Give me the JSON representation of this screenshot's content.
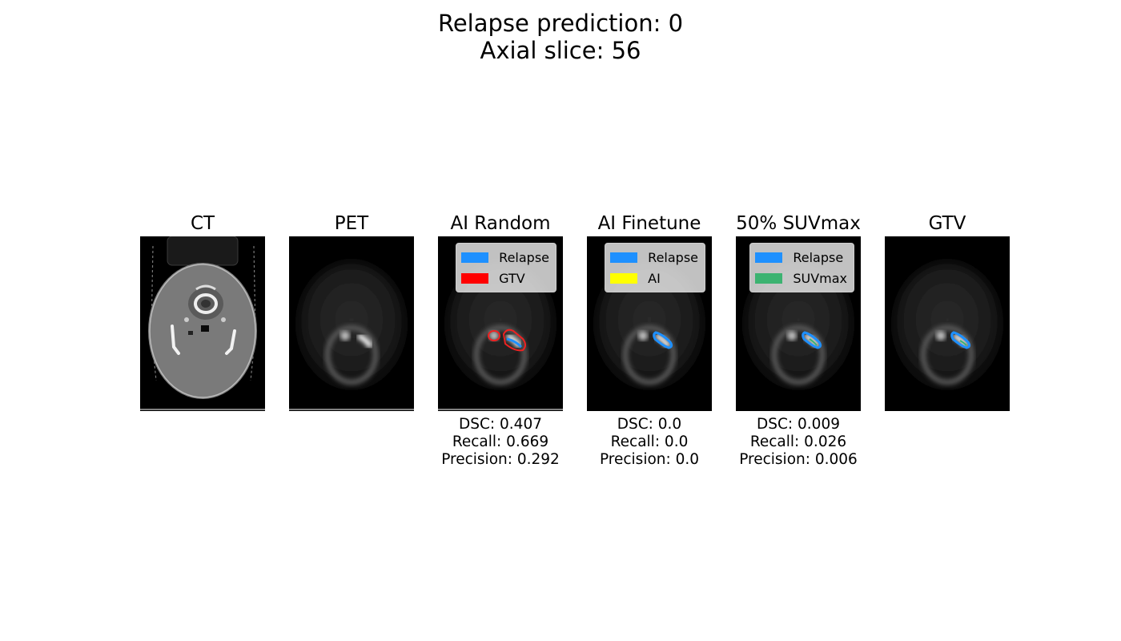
{
  "figure": {
    "title_line1": "Relapse prediction: 0",
    "title_line2": "Axial slice: 56"
  },
  "panels": [
    {
      "title": "CT"
    },
    {
      "title": "PET"
    },
    {
      "title": "AI Random",
      "legend": [
        {
          "label": "Relapse",
          "color": "#1e90ff"
        },
        {
          "label": "GTV",
          "color": "#ff0000"
        }
      ],
      "metrics": {
        "dsc": "DSC: 0.407",
        "recall": "Recall: 0.669",
        "precision": "Precision: 0.292"
      }
    },
    {
      "title": "AI Finetune",
      "legend": [
        {
          "label": "Relapse",
          "color": "#1e90ff"
        },
        {
          "label": "AI",
          "color": "#ffff00"
        }
      ],
      "metrics": {
        "dsc": "DSC: 0.0",
        "recall": "Recall: 0.0",
        "precision": "Precision: 0.0"
      }
    },
    {
      "title": "50% SUVmax",
      "legend": [
        {
          "label": "Relapse",
          "color": "#1e90ff"
        },
        {
          "label": "SUVmax",
          "color": "#3cb371"
        }
      ],
      "metrics": {
        "dsc": "DSC: 0.009",
        "recall": "Recall: 0.026",
        "precision": "Precision: 0.006"
      }
    },
    {
      "title": "GTV"
    }
  ]
}
